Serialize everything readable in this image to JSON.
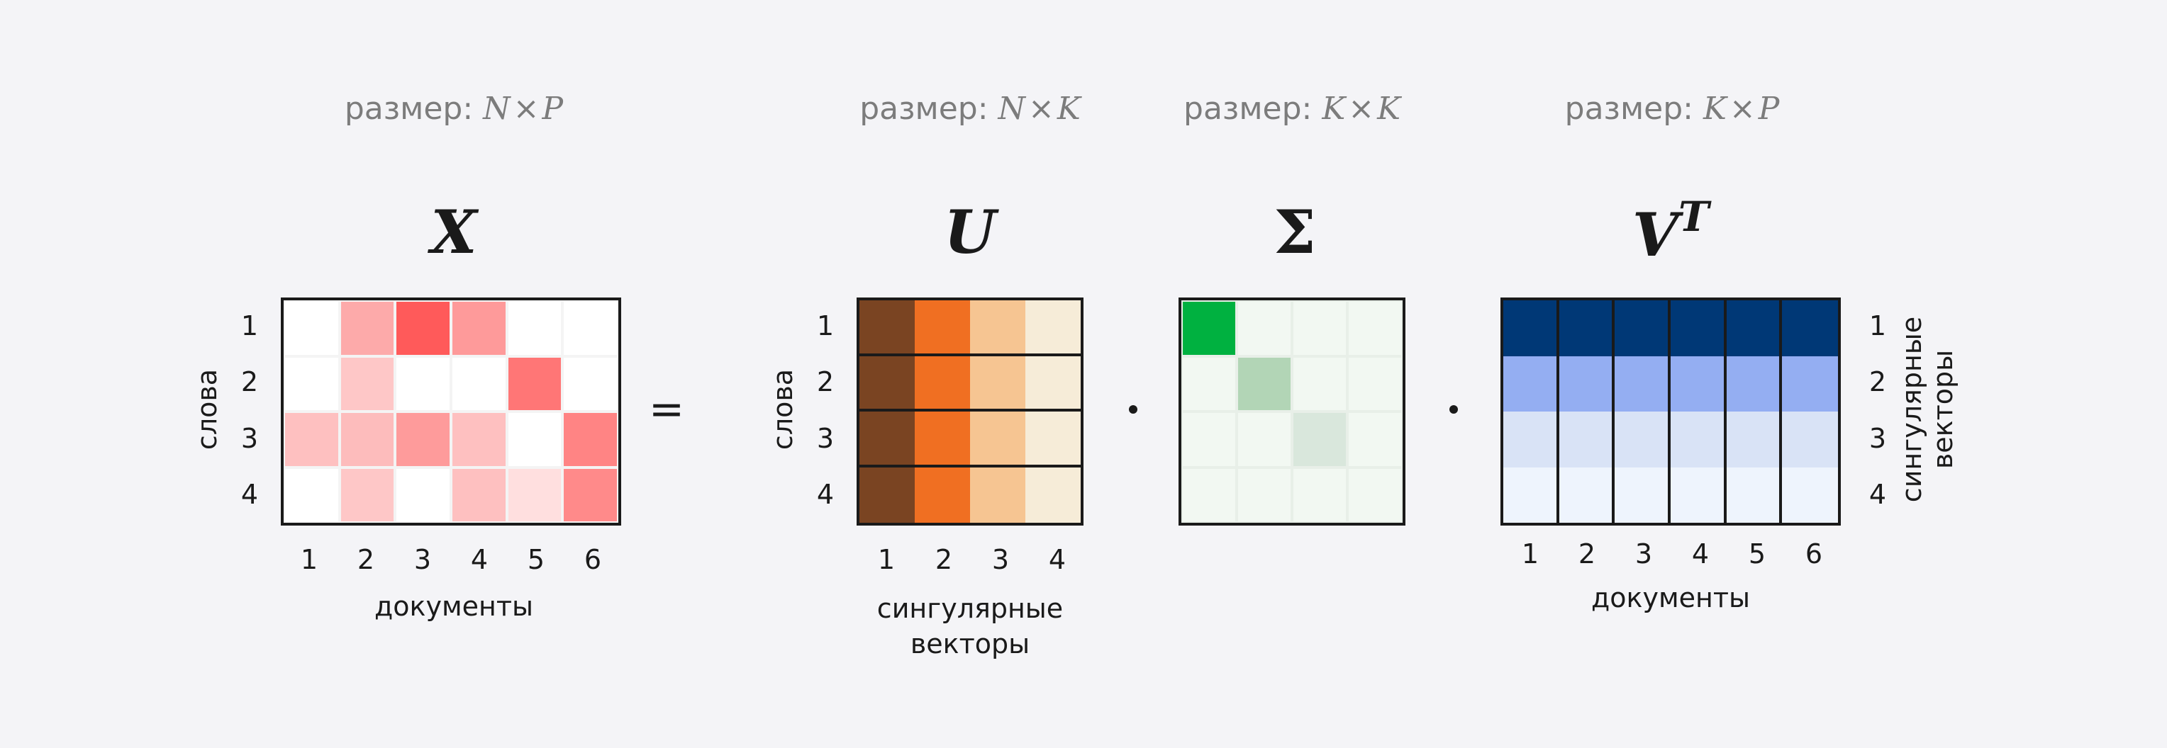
{
  "labels": {
    "size_prefix": "размер:",
    "times": "×",
    "rows_label": "слова",
    "docs_label": "документы",
    "sv_line1": "сингулярные",
    "sv_line2": "векторы"
  },
  "matrices": {
    "X": {
      "title": "X",
      "size_a": "N",
      "size_b": "P"
    },
    "U": {
      "title": "U",
      "size_a": "N",
      "size_b": "K"
    },
    "S": {
      "title": "Σ",
      "size_a": "K",
      "size_b": "K"
    },
    "V": {
      "title": "V",
      "sup": "T",
      "size_a": "K",
      "size_b": "P"
    }
  },
  "operators": {
    "equals": "="
  },
  "ticks": {
    "rows": [
      "1",
      "2",
      "3",
      "4"
    ],
    "cols6": [
      "1",
      "2",
      "3",
      "4",
      "5",
      "6"
    ],
    "cols4": [
      "1",
      "2",
      "3",
      "4"
    ]
  },
  "colors": {
    "X_cells": [
      [
        "#ffffff",
        "#fdaaaa",
        "#ff5a5a",
        "#fe9a9a",
        "#ffffff",
        "#ffffff"
      ],
      [
        "#ffffff",
        "#fec7c7",
        "#ffffff",
        "#ffffff",
        "#ff7676",
        "#ffffff"
      ],
      [
        "#fec0c0",
        "#fdbcbc",
        "#fe9b9b",
        "#fec0c0",
        "#ffffff",
        "#ff8484"
      ],
      [
        "#ffffff",
        "#fec7c7",
        "#ffffff",
        "#fec0c0",
        "#ffdfdf",
        "#ff8a8a"
      ]
    ],
    "U_cols": [
      "#7a4422",
      "#f06f22",
      "#f6c592",
      "#f6ecd8"
    ],
    "S_diag": [
      "#00b140",
      "#b2d5b6",
      "#d9e7dc",
      "#f2f8f2"
    ],
    "S_off": "#f2f8f2",
    "V_rows": [
      "#003876",
      "#94aef2",
      "#d9e3f6",
      "#eef4fd"
    ]
  }
}
